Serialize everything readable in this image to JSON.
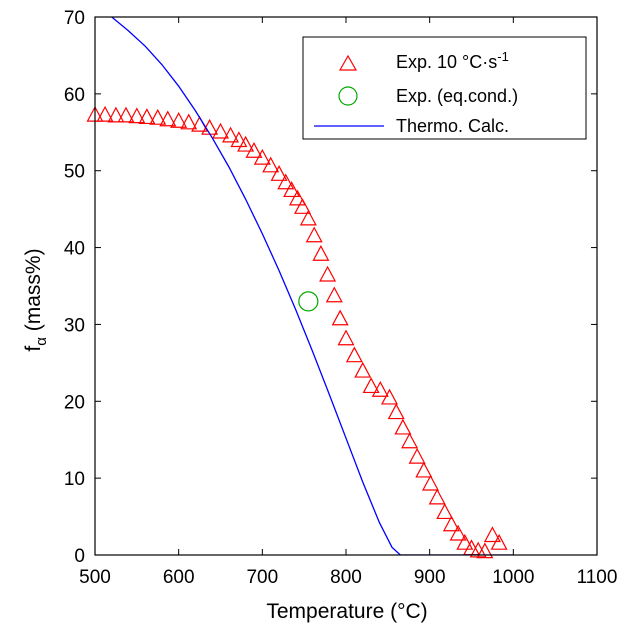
{
  "chart_data": {
    "type": "scatter",
    "xlabel": "Temperature (°C)",
    "ylabel_main": "f",
    "ylabel_sub": "α",
    "ylabel_rest": " (mass%)",
    "xlim": [
      500,
      1100
    ],
    "ylim": [
      0,
      70
    ],
    "xticks": [
      500,
      600,
      700,
      800,
      900,
      1000,
      1100
    ],
    "yticks": [
      0,
      10,
      20,
      30,
      40,
      50,
      60,
      70
    ],
    "grid": false,
    "legend_position": "top-right",
    "series": [
      {
        "name": "Exp. 10 °C·s",
        "name_superscript": "-1",
        "marker": "triangle",
        "color": "#ff0000",
        "x": [
          500,
          512,
          525,
          537,
          550,
          562,
          575,
          587,
          600,
          612,
          625,
          637,
          650,
          662,
          672,
          680,
          690,
          700,
          710,
          720,
          728,
          735,
          742,
          748,
          755,
          762,
          770,
          778,
          786,
          793,
          800,
          810,
          820,
          830,
          841,
          852,
          860,
          868,
          876,
          885,
          893,
          901,
          909,
          918,
          926,
          934,
          942,
          950,
          958,
          966,
          975,
          983
        ],
        "y": [
          57.3,
          57.3,
          57.2,
          57.2,
          57.1,
          57.0,
          56.9,
          56.7,
          56.5,
          56.3,
          56.0,
          55.6,
          55.1,
          54.6,
          54.0,
          53.4,
          52.6,
          51.7,
          50.7,
          49.6,
          48.5,
          47.5,
          46.4,
          45.3,
          43.8,
          41.6,
          39.2,
          36.5,
          33.8,
          30.8,
          28.2,
          26.0,
          24.0,
          22.0,
          21.5,
          20.5,
          18.6,
          16.6,
          14.8,
          12.8,
          11.0,
          9.3,
          7.5,
          5.6,
          4.0,
          2.8,
          1.6,
          0.9,
          0.6,
          0.5,
          2.6,
          1.6
        ],
        "fix_note": ""
      },
      {
        "name": "Exp. (eq.cond.)",
        "marker": "circle",
        "color": "#00aa00",
        "x": [
          755
        ],
        "y": [
          33.0
        ]
      },
      {
        "name": "Thermo. Calc.",
        "marker": "line",
        "color": "#0000ff",
        "x": [
          500,
          520,
          540,
          560,
          580,
          600,
          620,
          640,
          660,
          680,
          700,
          720,
          740,
          760,
          780,
          800,
          820,
          840,
          855,
          865,
          1000
        ],
        "y": [
          71.5,
          70.0,
          68.2,
          66.2,
          63.8,
          61.0,
          57.8,
          54.3,
          50.5,
          46.3,
          41.8,
          37.0,
          31.9,
          26.5,
          20.9,
          15.2,
          9.5,
          4.2,
          1.0,
          0.0,
          0.0
        ]
      }
    ]
  }
}
